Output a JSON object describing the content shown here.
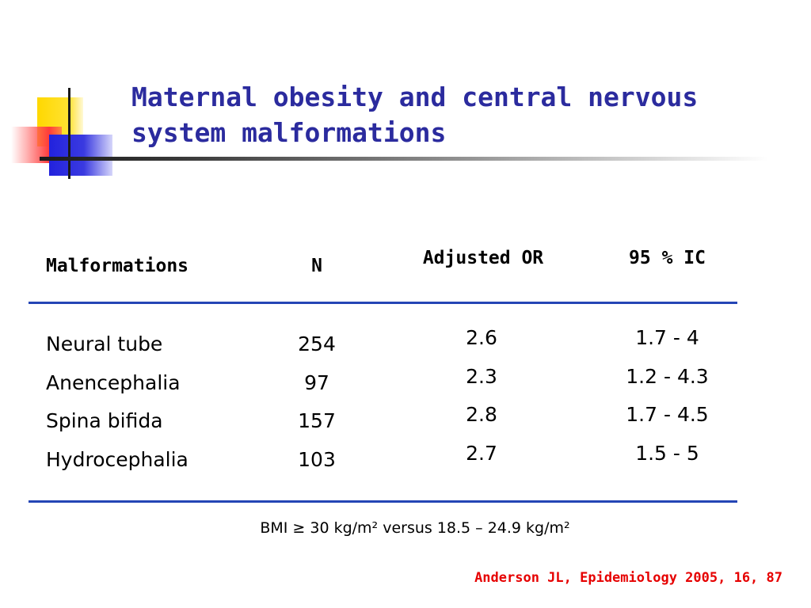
{
  "slide": {
    "title_line1": "Maternal obesity and central nervous",
    "title_line2": "system malformations",
    "colors": {
      "title": "#2b2b9e",
      "rule": "#2445b5",
      "citation": "#e60000",
      "logo_yellow": "#ffd800",
      "logo_red": "#ff3b3b",
      "logo_blue": "#2222dd"
    }
  },
  "table": {
    "headers": {
      "malformations": "Malformations",
      "n": "N",
      "adjusted_or": "Adjusted OR",
      "ic": "95 % IC"
    },
    "rows": [
      {
        "malformation": "Neural tube",
        "n": "254",
        "or": "2.6",
        "ic": "1.7 - 4"
      },
      {
        "malformation": "Anencephalia",
        "n": "97",
        "or": "2.3",
        "ic": "1.2 - 4.3"
      },
      {
        "malformation": "Spina bifida",
        "n": "157",
        "or": "2.8",
        "ic": "1.7 - 4.5"
      },
      {
        "malformation": "Hydrocephalia",
        "n": "103",
        "or": "2.7",
        "ic": "1.5 - 5"
      }
    ]
  },
  "footnote": "BMI ≥ 30 kg/m² versus 18.5 – 24.9 kg/m²",
  "citation": "Anderson JL, Epidemiology 2005, 16, 87"
}
